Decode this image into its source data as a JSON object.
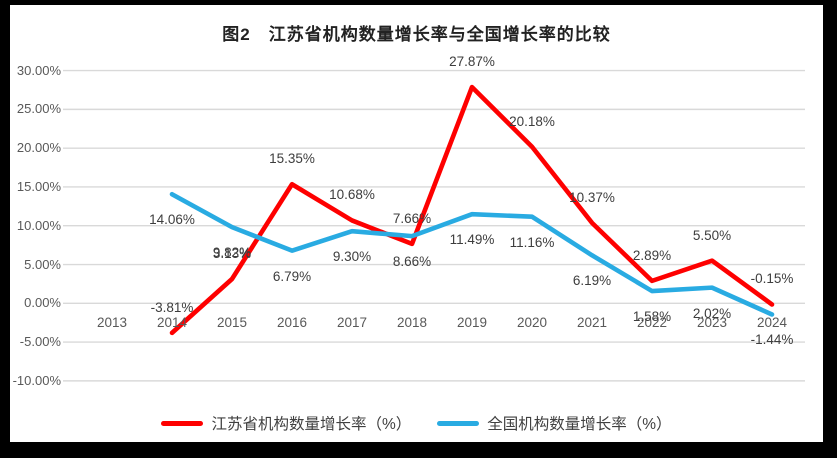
{
  "chart_data": {
    "type": "line",
    "title": "图2　江苏省机构数量增长率与全国增长率的比较",
    "categories": [
      "2013",
      "2014",
      "2015",
      "2016",
      "2017",
      "2018",
      "2019",
      "2020",
      "2021",
      "2022",
      "2023",
      "2024"
    ],
    "series": [
      {
        "key": "jiangsu",
        "name": "江苏省机构数量增长率（%）",
        "color": "#fe0000",
        "label_position": "above",
        "values": [
          null,
          -3.81,
          3.13,
          15.35,
          10.68,
          7.66,
          27.87,
          20.18,
          10.37,
          2.89,
          5.5,
          -0.15
        ],
        "labels": [
          null,
          "-3.81%",
          "3.13%",
          "15.35%",
          "10.68%",
          "7.66%",
          "27.87%",
          "20.18%",
          "10.37%",
          "2.89%",
          "5.50%",
          "-0.15%"
        ]
      },
      {
        "key": "national",
        "name": "全国机构数量增长率（%）",
        "color": "#29abe2",
        "label_position": "below",
        "values": [
          null,
          14.06,
          9.82,
          6.79,
          9.3,
          8.66,
          11.49,
          11.16,
          6.19,
          1.58,
          2.02,
          -1.44
        ],
        "labels": [
          null,
          "14.06%",
          "9.82%",
          "6.79%",
          "9.30%",
          "8.66%",
          "11.49%",
          "11.16%",
          "6.19%",
          "1.58%",
          "2.02%",
          "-1.44%"
        ]
      }
    ],
    "y_axis": {
      "min": -10,
      "max": 30,
      "step": 5,
      "tick_labels": [
        "30.00%",
        "25.00%",
        "20.00%",
        "15.00%",
        "10.00%",
        "5.00%",
        "0.00%",
        "-5.00%",
        "-10.00%"
      ]
    },
    "grid": true,
    "gridline_color": "#d9d9d9",
    "legend_position": "bottom"
  }
}
